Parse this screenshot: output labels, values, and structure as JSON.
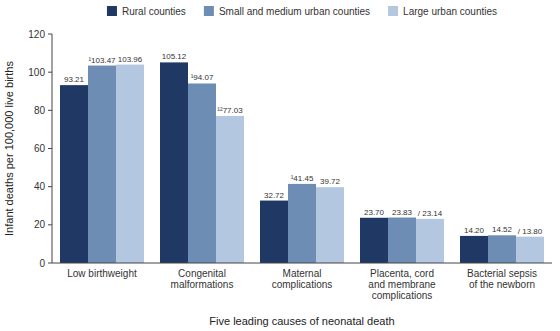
{
  "chart_data": {
    "type": "bar",
    "categories": [
      "Low birthweight",
      "Congenital\nmalformations",
      "Maternal\ncomplications",
      "Placenta, cord\nand membrane\ncomplications",
      "Bacterial sepsis\nof the newborn"
    ],
    "series": [
      {
        "name": "Rural counties",
        "color": "#1f3864",
        "values": [
          93.21,
          105.12,
          32.72,
          23.7,
          14.2
        ],
        "value_labels": [
          "93.21",
          "105.12",
          "32.72",
          "23.70",
          "14.20"
        ]
      },
      {
        "name": "Small and medium urban counties",
        "color": "#6d8db5",
        "values": [
          103.47,
          94.07,
          41.45,
          23.83,
          14.52
        ],
        "value_labels": [
          "¹103.47",
          "¹94.07",
          "¹41.45",
          "23.83",
          "14.52"
        ]
      },
      {
        "name": "Large urban counties",
        "color": "#b4c7e0",
        "values": [
          103.96,
          77.03,
          39.72,
          23.14,
          13.8
        ],
        "value_labels": [
          "103.96",
          "¹²77.03",
          "39.72",
          "/ 23.14",
          "/ 13.80"
        ]
      }
    ],
    "xlabel": "Five leading causes of neonatal death",
    "ylabel": "Infant deaths per 100,000 live births",
    "ylim": [
      0,
      120
    ],
    "yticks": [
      0,
      20,
      40,
      60,
      80,
      100,
      120
    ],
    "grid": false,
    "legend": "top",
    "data_labels": true
  }
}
